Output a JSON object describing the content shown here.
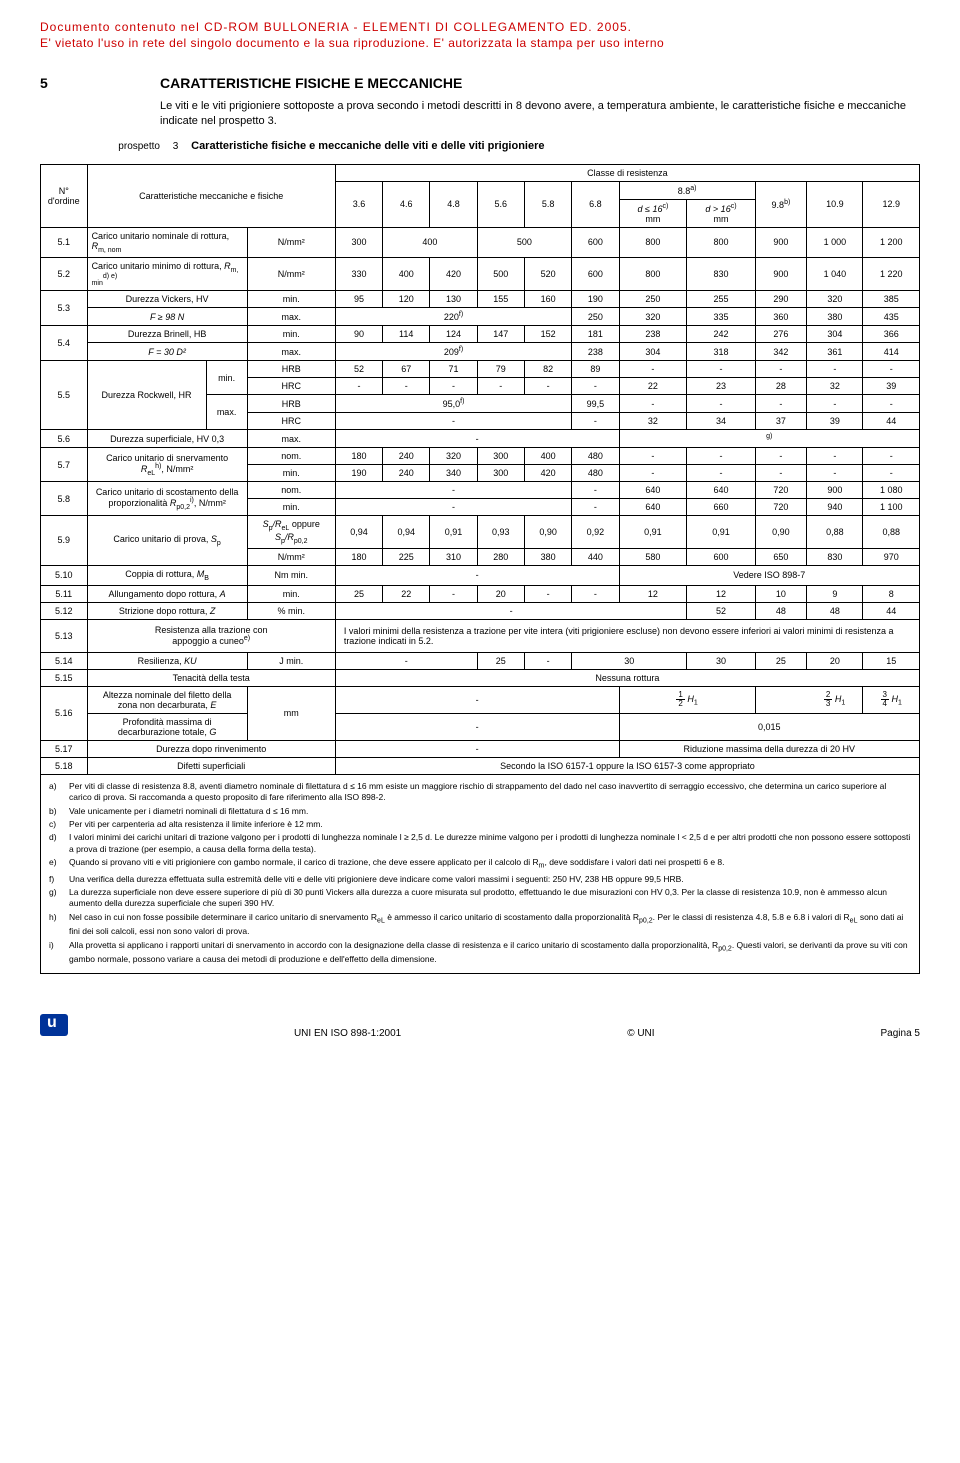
{
  "header": {
    "line1": "Documento contenuto nel CD-ROM BULLONERIA - ELEMENTI DI COLLEGAMENTO ED. 2005.",
    "line2": "E' vietato l'uso in rete del singolo documento e la sua riproduzione. E' autorizzata la stampa per uso interno"
  },
  "section": {
    "num": "5",
    "title": "CARATTERISTICHE FISICHE E MECCANICHE",
    "body": "Le viti e le viti prigioniere sottoposte a prova secondo i metodi descritti in 8 devono avere, a temperatura ambiente, le caratteristiche fisiche e meccaniche indicate nel prospetto 3."
  },
  "prospetto": {
    "label": "prospetto",
    "num": "3",
    "title": "Caratteristiche fisiche e meccaniche delle viti e delle viti prigioniere"
  },
  "table": {
    "col_nord": "N°\nd'ordine",
    "col_char": "Caratteristiche meccaniche e fisiche",
    "col_class": "Classe di resistenza",
    "classes": [
      "3.6",
      "4.6",
      "4.8",
      "5.6",
      "5.8",
      "6.8",
      "8.8",
      "9.8",
      "10.9",
      "12.9"
    ],
    "class88_note": "a)",
    "class98_note": "b)",
    "d_le": "d ≤ 16",
    "d_gt": "d > 16",
    "d_note": "c)",
    "mm": "mm",
    "rows": {
      "r51": {
        "n": "5.1",
        "label": "Carico unitario nominale di rottura, ",
        "sym": "R",
        "sub": "m, nom",
        "unit": "N/mm²",
        "v": [
          "300",
          "400",
          "",
          "500",
          "",
          "600",
          "800",
          "800",
          "900",
          "1 000",
          "1 200"
        ]
      },
      "r52": {
        "n": "5.2",
        "label": "Carico unitario minimo di rottura, ",
        "sym": "R",
        "sub": "m, min",
        "sup": "d) e)",
        "unit": "N/mm²",
        "v": [
          "330",
          "400",
          "420",
          "500",
          "520",
          "600",
          "800",
          "830",
          "900",
          "1 040",
          "1 220"
        ]
      },
      "r53": {
        "n": "5.3",
        "l1": "Durezza Vickers, HV",
        "l2": "F ≥ 98 N",
        "min": [
          "95",
          "120",
          "130",
          "155",
          "160",
          "190",
          "250",
          "255",
          "290",
          "320",
          "385"
        ],
        "max_span": "220",
        "max_sup": "f)",
        "max_rest": [
          "250",
          "320",
          "335",
          "360",
          "380",
          "435"
        ]
      },
      "r54": {
        "n": "5.4",
        "l1": "Durezza Brinell, HB",
        "l2": "F = 30 D²",
        "min": [
          "90",
          "114",
          "124",
          "147",
          "152",
          "181",
          "238",
          "242",
          "276",
          "304",
          "366"
        ],
        "max_span": "209",
        "max_sup": "f)",
        "max_rest": [
          "238",
          "304",
          "318",
          "342",
          "361",
          "414"
        ]
      },
      "r55": {
        "n": "5.5",
        "label": "Durezza Rockwell, HR",
        "hrb_min": [
          "52",
          "67",
          "71",
          "79",
          "82",
          "89",
          "-",
          "-",
          "-",
          "-",
          "-"
        ],
        "hrc_min": [
          "-",
          "-",
          "-",
          "-",
          "-",
          "-",
          "22",
          "23",
          "28",
          "32",
          "39"
        ],
        "hrb_max_span": "95,0",
        "hrb_max_sup": "f)",
        "hrb_max_rest": [
          "99,5",
          "-",
          "-",
          "-",
          "-",
          "-"
        ],
        "hrc_max": [
          "-",
          "",
          "",
          "",
          "",
          "-",
          "32",
          "34",
          "37",
          "39",
          "44"
        ]
      },
      "r56": {
        "n": "5.6",
        "label": "Durezza superficiale, HV 0,3",
        "unit": "max.",
        "val": "-",
        "note": "g)"
      },
      "r57": {
        "n": "5.7",
        "l1": "Carico unitario di snervamento",
        "l2": "R",
        "l2sub": "eL",
        "l2sup": "h)",
        "l2after": ", N/mm²",
        "nom": [
          "180",
          "240",
          "320",
          "300",
          "400",
          "480",
          "-",
          "-",
          "-",
          "-",
          "-"
        ],
        "min": [
          "190",
          "240",
          "340",
          "300",
          "420",
          "480",
          "-",
          "-",
          "-",
          "-",
          "-"
        ]
      },
      "r58": {
        "n": "5.8",
        "l1": "Carico unitario di scostamento della",
        "l2": "proporzionalità ",
        "sym": "R",
        "sub": "p0,2",
        "sup": "i)",
        "after": ", N/mm²",
        "nom_span": "-",
        "nom_rest": [
          "-",
          "640",
          "640",
          "720",
          "900",
          "1 080"
        ],
        "min_span": "-",
        "min_rest": [
          "-",
          "640",
          "660",
          "720",
          "940",
          "1 100"
        ]
      },
      "r59": {
        "n": "5.9",
        "label": "Carico unitario di prova, ",
        "sym": "S",
        "sub": "p",
        "row1_label": "S",
        "row1_sub": "p",
        "row1_mid": "/R",
        "row1_sub2": "eL",
        "row1_after": " oppure ",
        "row1_sym2": "S",
        "row1_sub3": "p",
        "row1_mid2": "/R",
        "row1_sub4": "p0,2",
        "ratio": [
          "0,94",
          "0,94",
          "0,91",
          "0,93",
          "0,90",
          "0,92",
          "0,91",
          "0,91",
          "0,90",
          "0,88",
          "0,88"
        ],
        "unit": "N/mm²",
        "val": [
          "180",
          "225",
          "310",
          "280",
          "380",
          "440",
          "580",
          "600",
          "650",
          "830",
          "970"
        ]
      },
      "r510": {
        "n": "5.10",
        "label": "Coppia di rottura, ",
        "sym": "M",
        "sub": "B",
        "unit": "Nm min.",
        "val": "-",
        "ref": "Vedere ISO 898-7"
      },
      "r511": {
        "n": "5.11",
        "label": "Allungamento dopo rottura, ",
        "sym": "A",
        "unit": "min.",
        "v": [
          "25",
          "22",
          "-",
          "20",
          "-",
          "-",
          "12",
          "12",
          "10",
          "9",
          "8"
        ]
      },
      "r512": {
        "n": "5.12",
        "label": "Strizione dopo rottura, ",
        "sym": "Z",
        "unit": "% min.",
        "span": "-",
        "rest": [
          "52",
          "48",
          "48",
          "44"
        ]
      },
      "r513": {
        "n": "5.13",
        "l1": "Resistenza alla trazione con",
        "l2": "appoggio a cuneo",
        "sup": "e)",
        "text": "I valori minimi della resistenza a trazione per vite intera (viti prigioniere escluse) non devono essere inferiori ai valori minimi di resistenza a trazione indicati in 5.2."
      },
      "r514": {
        "n": "5.14",
        "label": "Resilienza, ",
        "sym": "KU",
        "unit": "J min.",
        "v_span": "-",
        "v": [
          "25",
          "-",
          "30",
          "30",
          "25",
          "20",
          "15"
        ]
      },
      "r515": {
        "n": "5.15",
        "label": "Tenacità della testa",
        "text": "Nessuna rottura"
      },
      "r516": {
        "n": "5.16",
        "l1": "Altezza nominale del filetto della",
        "l2": "zona non decarburata, ",
        "sym": "E",
        "span": "-",
        "frac1_n": "1",
        "frac1_d": "2",
        "h1": "H",
        "h1sub": "1",
        "frac2_n": "2",
        "frac2_d": "3",
        "frac3_n": "3",
        "frac3_d": "4",
        "l3": "Profondità massima di",
        "l4": "decarburazione totale, ",
        "sym2": "G",
        "unit": "mm",
        "span2": "-",
        "val2": "0,015"
      },
      "r517": {
        "n": "5.17",
        "label": "Durezza dopo rinvenimento",
        "span": "-",
        "text": "Riduzione massima della durezza di 20 HV"
      },
      "r518": {
        "n": "5.18",
        "label": "Difetti superficiali",
        "text": "Secondo la ISO 6157-1 oppure la ISO 6157-3 come appropriato"
      }
    },
    "lbl_min": "min.",
    "lbl_max": "max.",
    "lbl_nom": "nom.",
    "lbl_hrb": "HRB",
    "lbl_hrc": "HRC"
  },
  "footnotes": {
    "a": "Per viti di classe di resistenza 8.8, aventi diametro nominale di filettatura d ≤ 16 mm esiste un maggiore rischio di strappamento del dado nel caso inavvertito di serraggio eccessivo, che determina un carico superiore al carico di prova. Si raccomanda a questo proposito di fare riferimento alla ISO 898-2.",
    "b": "Vale unicamente per i diametri nominali di filettatura d ≤ 16 mm.",
    "c": "Per viti per carpenteria ad alta resistenza il limite inferiore è 12 mm.",
    "d": "I valori minimi dei carichi unitari di trazione valgono per i prodotti di lunghezza nominale l ≥ 2,5 d. Le durezze minime valgono per i prodotti di lunghezza nominale l < 2,5 d e per altri prodotti che non possono essere sottoposti a prova di trazione (per esempio, a causa della forma della testa).",
    "e": "Quando si provano viti e viti prigioniere con gambo normale, il carico di trazione, che deve essere applicato per il calcolo di R",
    "e2": ", deve soddisfare i valori dati nei prospetti 6 e 8.",
    "f": "Una verifica della durezza effettuata sulla estremità delle viti e delle viti prigioniere deve indicare come valori massimi i seguenti: 250 HV, 238 HB oppure 99,5 HRB.",
    "g": "La durezza superficiale non deve essere superiore di più di 30 punti Vickers alla durezza a cuore misurata sul prodotto, effettuando le due misurazioni con HV 0,3. Per la classe di resistenza 10.9, non è ammesso alcun aumento della durezza superficiale che superi 390 HV.",
    "h": "Nel caso in cui non fosse possibile determinare il carico unitario di snervamento R",
    "h2": " è ammesso il carico unitario di scostamento dalla proporzionalità R",
    "h3": ". Per le classi di resistenza 4.8, 5.8 e 6.8 i valori di R",
    "h4": " sono dati ai fini dei soli calcoli, essi non sono valori di prova.",
    "i": "Alla provetta si applicano i rapporti unitari di snervamento in accordo con la designazione della classe di resistenza e il carico unitario di scostamento dalla proporzionalità, R",
    "i2": ". Questi valori, se derivanti da prove su viti con gambo normale, possono variare a causa dei metodi di produzione e dell'effetto della dimensione."
  },
  "footer": {
    "doc": "UNI EN ISO 898-1:2001",
    "copy": "© UNI",
    "page": "Pagina 5"
  }
}
